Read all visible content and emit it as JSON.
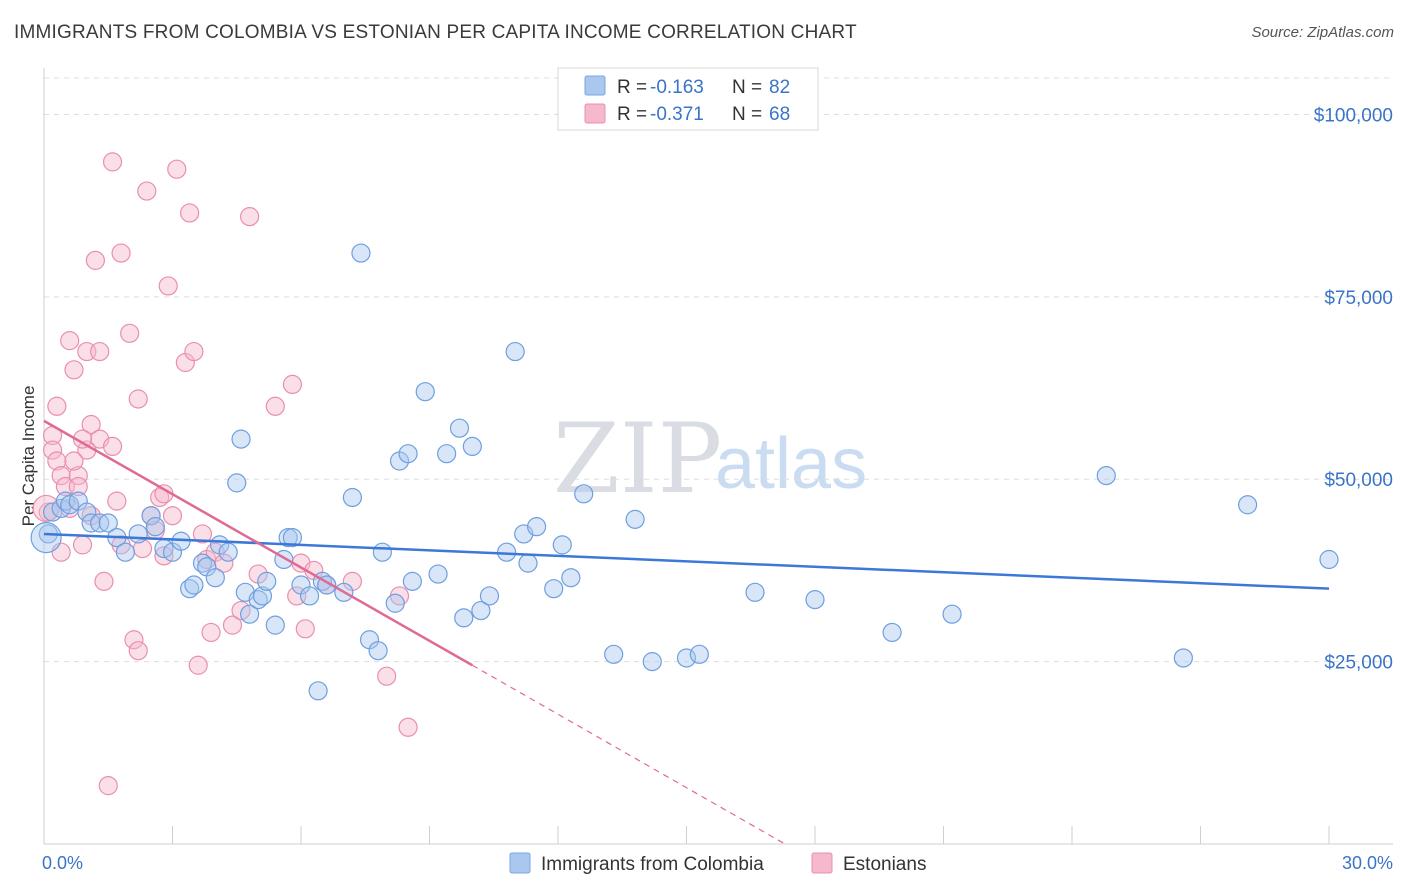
{
  "header": {
    "title": "IMMIGRANTS FROM COLOMBIA VS ESTONIAN PER CAPITA INCOME CORRELATION CHART",
    "source": "Source: ZipAtlas.com"
  },
  "watermark": {
    "zip": "ZIP",
    "atlas": "atlas"
  },
  "legend": {
    "rows": [
      {
        "r_label": "R =",
        "r_value": "-0.163",
        "n_label": "N =",
        "n_value": "82",
        "color": "#a9c7ef"
      },
      {
        "r_label": "R =",
        "r_value": "-0.371",
        "n_label": "N =",
        "n_value": "68",
        "color": "#f6b8cc"
      }
    ]
  },
  "bottom_legend": [
    {
      "label": "Immigrants from Colombia",
      "color": "#a9c7ef"
    },
    {
      "label": "Estonians",
      "color": "#f6b8cc"
    }
  ],
  "chart_data": {
    "type": "scatter",
    "title": "IMMIGRANTS FROM COLOMBIA VS ESTONIAN PER CAPITA INCOME CORRELATION CHART",
    "xlabel": "",
    "ylabel": "Per Capita Income",
    "xlim": [
      0,
      30
    ],
    "ylim": [
      0,
      105000
    ],
    "x_tick_labels": [
      "0.0%",
      "30.0%"
    ],
    "y_ticks": [
      25000,
      50000,
      75000,
      100000
    ],
    "y_tick_labels": [
      "$25,000",
      "$50,000",
      "$75,000",
      "$100,000"
    ],
    "colors": {
      "colombia": "#3c78d8",
      "estonians": "#e06a96"
    },
    "series": [
      {
        "name": "Immigrants from Colombia",
        "points": [
          [
            0.1,
            42500
          ],
          [
            0.2,
            45500
          ],
          [
            0.4,
            46000
          ],
          [
            0.5,
            47000
          ],
          [
            0.6,
            46500
          ],
          [
            0.8,
            47000
          ],
          [
            1.0,
            45500
          ],
          [
            1.1,
            44000
          ],
          [
            1.3,
            44000
          ],
          [
            1.5,
            44000
          ],
          [
            1.7,
            42000
          ],
          [
            1.9,
            40000
          ],
          [
            2.2,
            42500
          ],
          [
            2.5,
            45000
          ],
          [
            2.6,
            43500
          ],
          [
            2.8,
            40500
          ],
          [
            3.0,
            40000
          ],
          [
            3.2,
            41500
          ],
          [
            3.4,
            35000
          ],
          [
            3.5,
            35500
          ],
          [
            3.7,
            38500
          ],
          [
            3.8,
            38000
          ],
          [
            4.0,
            36500
          ],
          [
            4.1,
            41000
          ],
          [
            4.3,
            40000
          ],
          [
            4.5,
            49500
          ],
          [
            4.6,
            55500
          ],
          [
            4.7,
            34500
          ],
          [
            4.8,
            31500
          ],
          [
            5.0,
            33500
          ],
          [
            5.1,
            34000
          ],
          [
            5.2,
            36000
          ],
          [
            5.4,
            30000
          ],
          [
            5.6,
            39000
          ],
          [
            5.7,
            42000
          ],
          [
            5.8,
            42000
          ],
          [
            6.0,
            35500
          ],
          [
            6.2,
            34000
          ],
          [
            6.4,
            21000
          ],
          [
            6.5,
            36000
          ],
          [
            6.6,
            35500
          ],
          [
            7.0,
            34500
          ],
          [
            7.2,
            47500
          ],
          [
            7.4,
            81000
          ],
          [
            7.6,
            28000
          ],
          [
            7.8,
            26500
          ],
          [
            7.9,
            40000
          ],
          [
            8.2,
            33000
          ],
          [
            8.3,
            52500
          ],
          [
            8.5,
            53500
          ],
          [
            8.6,
            36000
          ],
          [
            8.9,
            62000
          ],
          [
            9.2,
            37000
          ],
          [
            9.4,
            53500
          ],
          [
            9.7,
            57000
          ],
          [
            9.8,
            31000
          ],
          [
            10.0,
            54500
          ],
          [
            10.2,
            32000
          ],
          [
            10.4,
            34000
          ],
          [
            10.8,
            40000
          ],
          [
            11.0,
            67500
          ],
          [
            11.2,
            42500
          ],
          [
            11.3,
            38500
          ],
          [
            11.5,
            43500
          ],
          [
            11.9,
            35000
          ],
          [
            12.1,
            41000
          ],
          [
            12.3,
            36500
          ],
          [
            12.6,
            48000
          ],
          [
            13.3,
            26000
          ],
          [
            13.8,
            44500
          ],
          [
            14.2,
            25000
          ],
          [
            15.0,
            25500
          ],
          [
            15.3,
            26000
          ],
          [
            16.6,
            34500
          ],
          [
            18.0,
            33500
          ],
          [
            19.8,
            29000
          ],
          [
            21.2,
            31500
          ],
          [
            24.8,
            50500
          ],
          [
            26.6,
            25500
          ],
          [
            28.1,
            46500
          ],
          [
            30.0,
            39000
          ]
        ]
      },
      {
        "name": "Estonians",
        "points": [
          [
            0.1,
            45500
          ],
          [
            0.2,
            56000
          ],
          [
            0.2,
            54000
          ],
          [
            0.3,
            60000
          ],
          [
            0.3,
            52500
          ],
          [
            0.4,
            50500
          ],
          [
            0.5,
            49000
          ],
          [
            0.6,
            69000
          ],
          [
            0.6,
            46000
          ],
          [
            0.7,
            65000
          ],
          [
            0.8,
            50500
          ],
          [
            0.8,
            49000
          ],
          [
            0.9,
            41000
          ],
          [
            1.0,
            67500
          ],
          [
            1.0,
            54000
          ],
          [
            1.1,
            57500
          ],
          [
            1.1,
            45000
          ],
          [
            1.2,
            80000
          ],
          [
            1.3,
            55500
          ],
          [
            1.3,
            67500
          ],
          [
            1.4,
            36000
          ],
          [
            1.6,
            93500
          ],
          [
            1.6,
            54500
          ],
          [
            1.7,
            47000
          ],
          [
            1.8,
            81000
          ],
          [
            1.8,
            41000
          ],
          [
            2.0,
            70000
          ],
          [
            2.1,
            28000
          ],
          [
            2.2,
            61000
          ],
          [
            2.2,
            26500
          ],
          [
            2.4,
            89500
          ],
          [
            2.5,
            45000
          ],
          [
            2.6,
            43000
          ],
          [
            2.7,
            47500
          ],
          [
            2.8,
            48000
          ],
          [
            2.8,
            39500
          ],
          [
            2.9,
            76500
          ],
          [
            3.0,
            45000
          ],
          [
            3.1,
            92500
          ],
          [
            3.3,
            66000
          ],
          [
            3.4,
            86500
          ],
          [
            3.5,
            67500
          ],
          [
            3.6,
            24500
          ],
          [
            3.7,
            42500
          ],
          [
            3.8,
            39000
          ],
          [
            3.9,
            29000
          ],
          [
            4.0,
            40000
          ],
          [
            4.2,
            38500
          ],
          [
            4.4,
            30000
          ],
          [
            4.6,
            32000
          ],
          [
            4.8,
            86000
          ],
          [
            5.0,
            37000
          ],
          [
            5.4,
            60000
          ],
          [
            5.8,
            63000
          ],
          [
            5.9,
            34000
          ],
          [
            6.0,
            38500
          ],
          [
            6.1,
            29500
          ],
          [
            6.3,
            37500
          ],
          [
            6.6,
            35500
          ],
          [
            7.2,
            36000
          ],
          [
            8.0,
            23000
          ],
          [
            8.3,
            34000
          ],
          [
            8.5,
            16000
          ],
          [
            1.5,
            8000
          ],
          [
            0.4,
            40000
          ],
          [
            0.9,
            55500
          ],
          [
            2.3,
            40500
          ],
          [
            0.7,
            52500
          ]
        ]
      }
    ],
    "trendlines": [
      {
        "series": "Immigrants from Colombia",
        "x_start": 0,
        "y_start": 42500,
        "x_end": 30,
        "y_end": 35000,
        "style": "solid"
      },
      {
        "series": "Estonians",
        "x_start": 0,
        "y_start": 58000,
        "x_end": 10,
        "y_end": 24500,
        "style": "solid"
      },
      {
        "series": "Estonians",
        "x_start": 10,
        "y_start": 24500,
        "x_end": 17.3,
        "y_end": 0,
        "style": "dashed"
      }
    ]
  }
}
